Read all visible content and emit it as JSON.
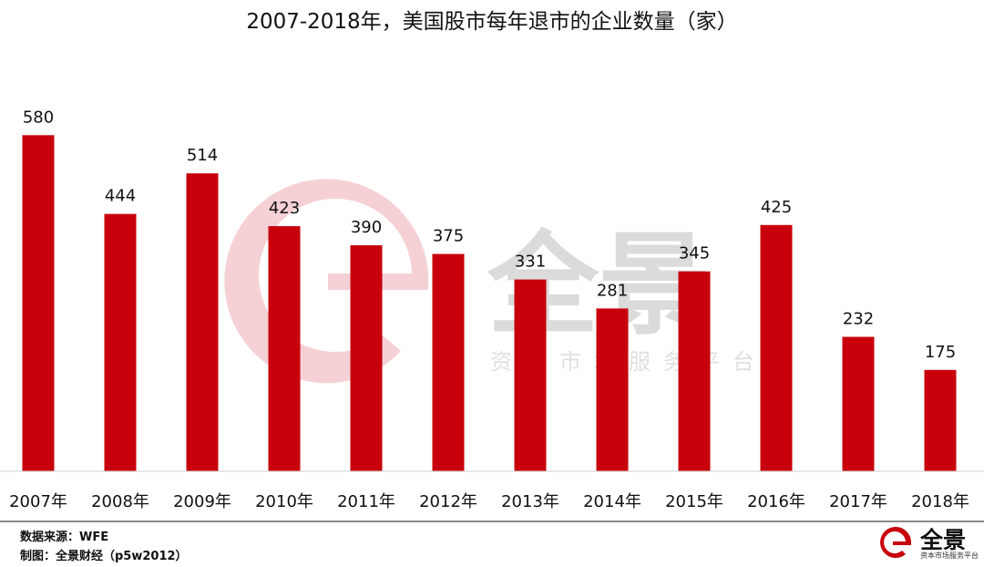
{
  "chart_data": {
    "type": "bar",
    "title": "2007-2018年，美国股市每年退市的企业数量（家）",
    "categories": [
      "2007年",
      "2008年",
      "2009年",
      "2010年",
      "2011年",
      "2012年",
      "2013年",
      "2014年",
      "2015年",
      "2016年",
      "2017年",
      "2018年"
    ],
    "values": [
      580,
      444,
      514,
      423,
      390,
      375,
      331,
      281,
      345,
      425,
      232,
      175
    ],
    "xlabel": "",
    "ylabel": "",
    "ylim": [
      0,
      700
    ],
    "grid": false,
    "legend": "none",
    "bar_color": "#c8000b",
    "data_labels": true
  },
  "watermark": {
    "name": "全景",
    "tagline": "资本市场服务平台",
    "color": "#f2c8cb"
  },
  "footer": {
    "source": "数据来源：WFE",
    "credit": "制图：全景财经（p5w2012）",
    "brand_name": "全景",
    "brand_tagline": "资本市场服务平台",
    "brand_icon": "p5w-logo-icon",
    "brand_color": "#c8000b"
  }
}
